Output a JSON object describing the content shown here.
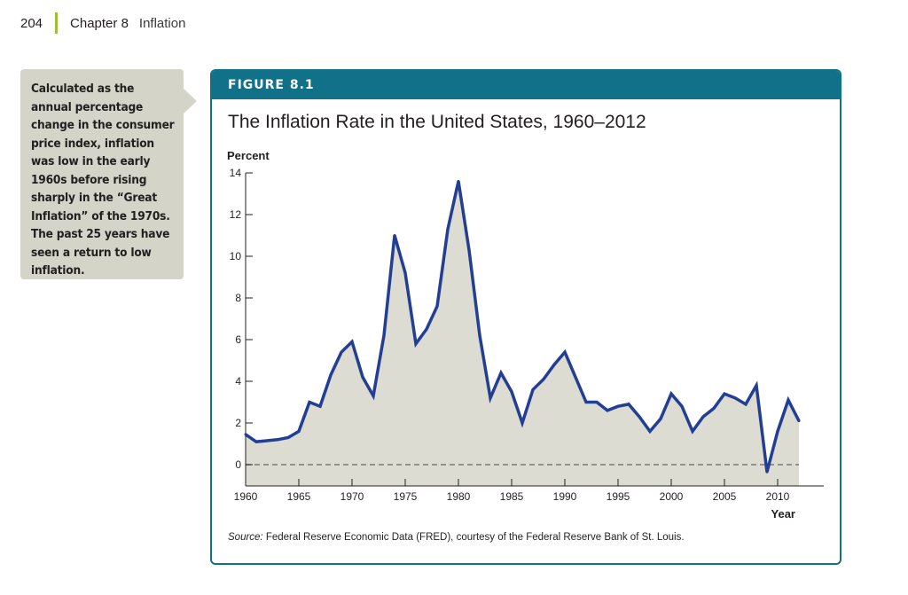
{
  "page": {
    "number": "204",
    "chapter": "Chapter 8",
    "topic": "Inflation",
    "accent_color": "#9bbf3b"
  },
  "callout": {
    "text": "Calculated as the annual percentage change in the consumer price index, inflation was low in the early 1960s before rising sharply in the “Great Inflation” of the 1970s. The past 25 years have seen a return to low inflation."
  },
  "figure": {
    "label": "FIGURE 8.1",
    "header_color": "#117189",
    "source_label": "Source:",
    "source_text": " Federal Reserve Economic Data (FRED), courtesy of the Federal Reserve Bank of St. Louis."
  },
  "chart_data": {
    "type": "area",
    "title": "The Inflation Rate in the United States, 1960–2012",
    "ylabel": "Percent",
    "xlabel": "Year",
    "ylim": [
      -1,
      14
    ],
    "xlim": [
      1960,
      2013.5
    ],
    "yticks": [
      0,
      2,
      4,
      6,
      8,
      10,
      12,
      14
    ],
    "xticks": [
      1960,
      1965,
      1970,
      1975,
      1980,
      1985,
      1990,
      1995,
      2000,
      2005,
      2010
    ],
    "grid": false,
    "zero_line": "dashed",
    "line_color": "#233f94",
    "fill_color": "#dcdcd2",
    "series": [
      {
        "name": "Inflation rate (CPI, annual % change)",
        "x": [
          1960,
          1961,
          1962,
          1963,
          1964,
          1965,
          1966,
          1967,
          1968,
          1969,
          1970,
          1971,
          1972,
          1973,
          1974,
          1975,
          1976,
          1977,
          1978,
          1979,
          1980,
          1981,
          1982,
          1983,
          1984,
          1985,
          1986,
          1987,
          1988,
          1989,
          1990,
          1991,
          1992,
          1993,
          1994,
          1995,
          1996,
          1997,
          1998,
          1999,
          2000,
          2001,
          2002,
          2003,
          2004,
          2005,
          2006,
          2007,
          2008,
          2009,
          2010,
          2011,
          2012
        ],
        "values": [
          1.45,
          1.1,
          1.15,
          1.2,
          1.3,
          1.6,
          3.0,
          2.8,
          4.3,
          5.4,
          5.9,
          4.2,
          3.3,
          6.2,
          11.0,
          9.2,
          5.8,
          6.5,
          7.6,
          11.3,
          13.6,
          10.3,
          6.2,
          3.2,
          4.4,
          3.5,
          2.0,
          3.6,
          4.1,
          4.8,
          5.4,
          4.2,
          3.0,
          3.0,
          2.6,
          2.8,
          2.9,
          2.3,
          1.6,
          2.2,
          3.4,
          2.8,
          1.6,
          2.3,
          2.7,
          3.4,
          3.2,
          2.9,
          3.8,
          -0.35,
          1.6,
          3.1,
          2.1
        ]
      }
    ]
  }
}
